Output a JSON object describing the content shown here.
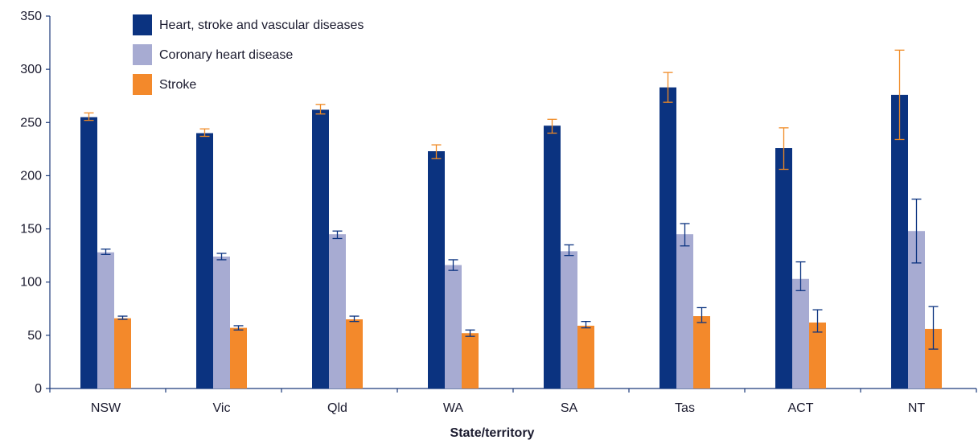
{
  "chart_data": {
    "type": "bar",
    "xlabel": "State/territory",
    "ylabel": "",
    "ylim": [
      0,
      350
    ],
    "yticks": [
      0,
      50,
      100,
      150,
      200,
      250,
      300,
      350
    ],
    "categories": [
      "NSW",
      "Vic",
      "Qld",
      "WA",
      "SA",
      "Tas",
      "ACT",
      "NT"
    ],
    "series": [
      {
        "name": "Heart, stroke and vascular diseases",
        "color": "#0b3380",
        "error_color": "#f08a24",
        "values": [
          255,
          240,
          262,
          223,
          247,
          283,
          226,
          276
        ],
        "ci_low": [
          252,
          237,
          258,
          216,
          240,
          269,
          206,
          234
        ],
        "ci_high": [
          259,
          244,
          267,
          229,
          253,
          297,
          245,
          318
        ]
      },
      {
        "name": "Coronary heart disease",
        "color": "#a7abd2",
        "error_color": "#0b3380",
        "values": [
          128,
          124,
          145,
          116,
          129,
          145,
          103,
          148
        ],
        "ci_low": [
          126,
          121,
          141,
          111,
          125,
          134,
          92,
          118
        ],
        "ci_high": [
          131,
          127,
          148,
          121,
          135,
          155,
          119,
          178
        ]
      },
      {
        "name": "Stroke",
        "color": "#f3892b",
        "error_color": "#0b3380",
        "values": [
          66,
          57,
          65,
          52,
          59,
          68,
          62,
          56
        ],
        "ci_low": [
          65,
          55,
          63,
          49,
          57,
          62,
          53,
          37
        ],
        "ci_high": [
          68,
          59,
          68,
          55,
          63,
          76,
          74,
          77
        ]
      }
    ],
    "legend_position": "top-left",
    "grid": false
  }
}
